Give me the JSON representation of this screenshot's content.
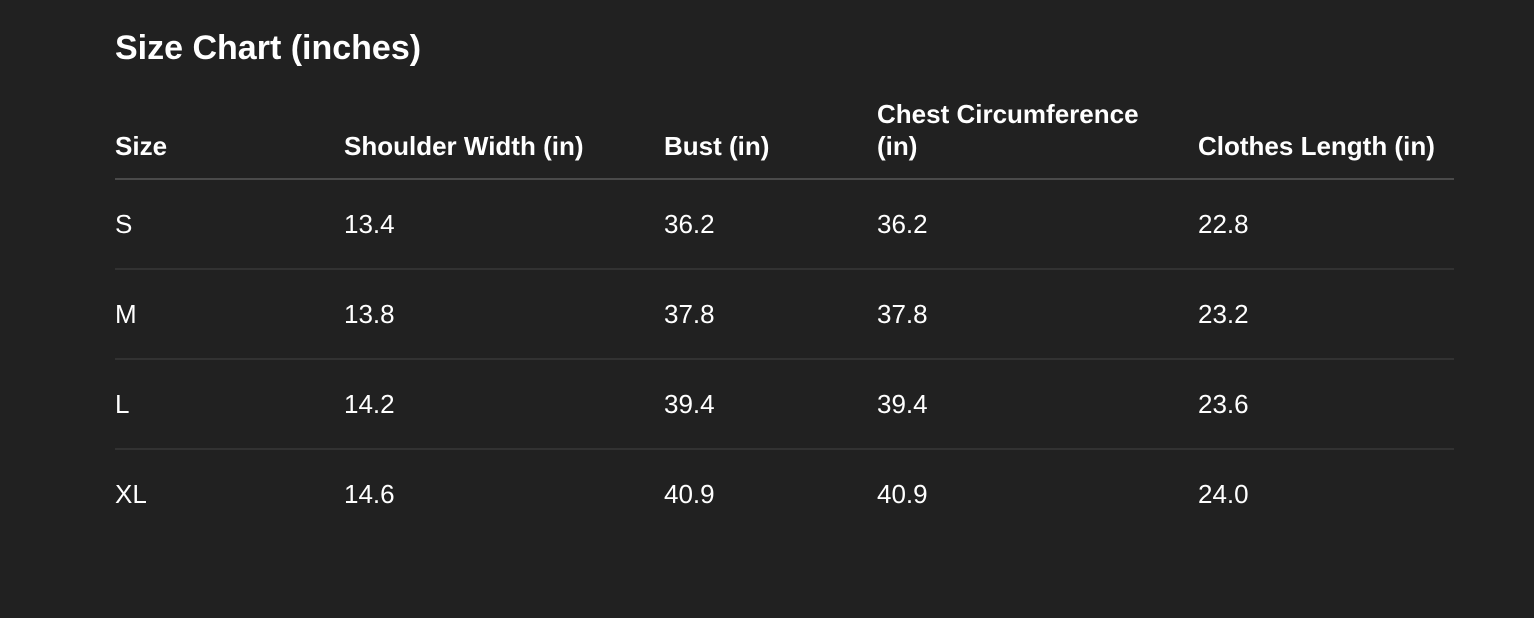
{
  "title": "Size Chart (inches)",
  "columns": [
    "Size",
    "Shoulder Width (in)",
    "Bust (in)",
    "Chest Circumference (in)",
    "Clothes Length (in)"
  ],
  "rows": [
    [
      "S",
      "13.4",
      "36.2",
      "36.2",
      "22.8"
    ],
    [
      "M",
      "13.8",
      "37.8",
      "37.8",
      "23.2"
    ],
    [
      "L",
      "14.2",
      "39.4",
      "39.4",
      "23.6"
    ],
    [
      "XL",
      "14.6",
      "40.9",
      "40.9",
      "24.0"
    ]
  ]
}
